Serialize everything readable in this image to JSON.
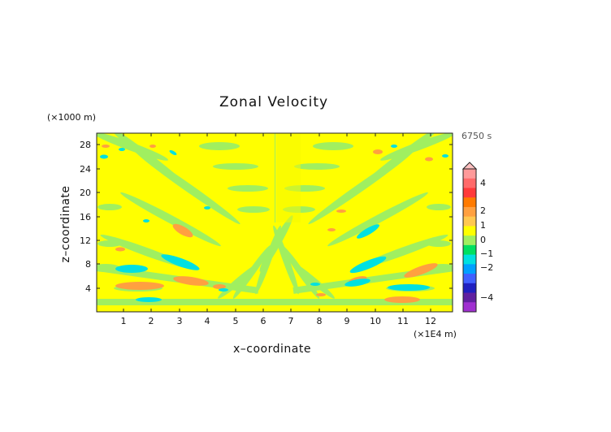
{
  "chart_data": {
    "type": "heatmap",
    "title": "Zonal Velocity",
    "xlabel": "x–coordinate",
    "ylabel": "z–coordinate",
    "x_unit": "(×1E4 m)",
    "y_unit": "(×1000 m)",
    "time_label": "6750 s",
    "xlim": [
      0,
      12.8
    ],
    "ylim": [
      0,
      30
    ],
    "x_ticks": [
      "1",
      "2",
      "3",
      "4",
      "5",
      "6",
      "7",
      "8",
      "9",
      "10",
      "11",
      "12"
    ],
    "y_ticks": [
      "4",
      "8",
      "12",
      "16",
      "20",
      "24",
      "28"
    ],
    "colorbar": {
      "labels": [
        "4",
        "2",
        "1",
        "0",
        "−1",
        "−2",
        "−4"
      ],
      "levels": [
        4,
        2,
        1,
        0,
        -1,
        -2,
        -4
      ],
      "colors": [
        "#ff9a9a",
        "#ff6a6a",
        "#ff3a3a",
        "#ff7a00",
        "#ffa040",
        "#ffc850",
        "#ffff00",
        "#a0ef60",
        "#00e060",
        "#00e0e0",
        "#00a0ff",
        "#4060ff",
        "#2020c0",
        "#6020a0",
        "#a030d0"
      ]
    }
  }
}
